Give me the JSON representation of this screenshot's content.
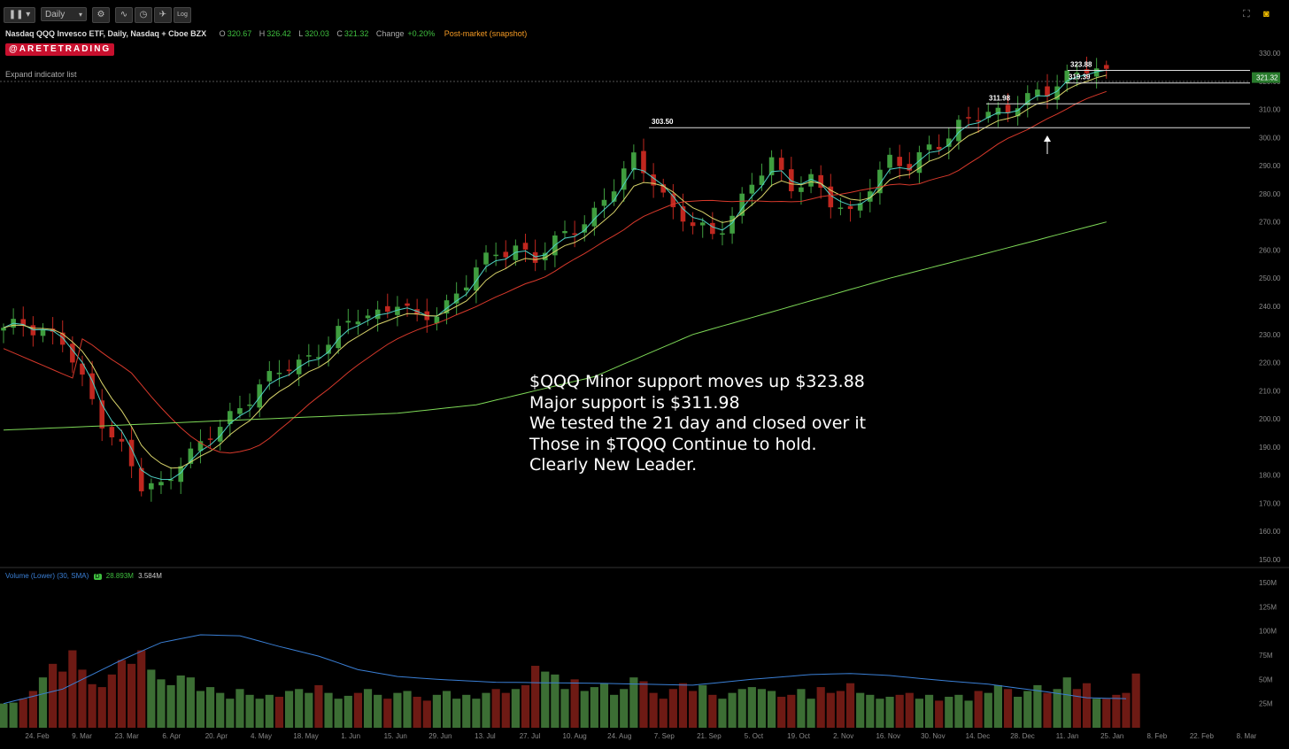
{
  "toolbar": {
    "interval_label": "Daily",
    "log_label": "Log"
  },
  "header": {
    "instrument": "Nasdaq QQQ Invesco ETF, Daily, Nasdaq + Cboe BZX",
    "open_label": "O",
    "open": "320.67",
    "high_label": "H",
    "high": "326.42",
    "low_label": "L",
    "low": "320.03",
    "close_label": "C",
    "close": "321.32",
    "change_label": "Change",
    "change": "+0.20%",
    "post_market": "Post-market (snapshot)"
  },
  "brand": "@ARETETRADING",
  "expand_indicator": "Expand indicator list",
  "volume_legend": {
    "label": "Volume (Lower) (30, SMA)",
    "badge": "D",
    "volume": "28.893M",
    "sma": "3.584M"
  },
  "annotation": [
    "$QQQ Minor support moves up $323.88",
    "Major support is $311.98",
    "We tested the 21 day and closed over it",
    "Those in $TQQQ Continue to hold.",
    "Clearly New Leader."
  ],
  "colors": {
    "up": "#3f9e3f",
    "down": "#c0271f",
    "ema_fast": "#4fd1c5",
    "ema_mid": "#d8d36a",
    "ma_50": "#d8392b",
    "ma_200": "#7ed957",
    "vol_up": "#3c6e34",
    "vol_down": "#6e1a14",
    "vol_sma": "#3a7fd5",
    "current_price_bg": "#2a7d2e"
  },
  "chart_data": {
    "type": "candlestick",
    "price_axis": {
      "ylim": [
        150,
        330
      ],
      "ticks": [
        "330.00",
        "320.00",
        "310.00",
        "300.00",
        "290.00",
        "280.00",
        "270.00",
        "260.00",
        "250.00",
        "240.00",
        "230.00",
        "220.00",
        "210.00",
        "200.00",
        "190.00",
        "180.00",
        "170.00",
        "160.00",
        "150.00"
      ]
    },
    "volume_axis": {
      "ylim": [
        0,
        150
      ],
      "ticks": [
        "150M",
        "125M",
        "100M",
        "75M",
        "50M",
        "25M"
      ]
    },
    "x_tick_labels": [
      "24. Feb",
      "9. Mar",
      "23. Mar",
      "6. Apr",
      "20. Apr",
      "4. May",
      "18. May",
      "1. Jun",
      "15. Jun",
      "29. Jun",
      "13. Jul",
      "27. Jul",
      "10. Aug",
      "24. Aug",
      "7. Sep",
      "21. Sep",
      "5. Oct",
      "19. Oct",
      "2. Nov",
      "16. Nov",
      "30. Nov",
      "14. Dec",
      "28. Dec",
      "11. Jan",
      "25. Jan",
      "8. Feb",
      "22. Feb",
      "8. Mar"
    ],
    "close_path": [
      [
        0,
        231
      ],
      [
        2,
        234
      ],
      [
        4,
        232
      ],
      [
        6,
        227
      ],
      [
        8,
        213
      ],
      [
        10,
        200
      ],
      [
        12,
        190
      ],
      [
        14,
        175
      ],
      [
        16,
        176
      ],
      [
        18,
        186
      ],
      [
        20,
        190
      ],
      [
        22,
        197
      ],
      [
        24,
        205
      ],
      [
        26,
        212
      ],
      [
        28,
        216
      ],
      [
        30,
        220
      ],
      [
        32,
        225
      ],
      [
        34,
        230
      ],
      [
        36,
        236
      ],
      [
        38,
        238
      ],
      [
        40,
        242
      ],
      [
        42,
        234
      ],
      [
        44,
        238
      ],
      [
        46,
        245
      ],
      [
        48,
        253
      ],
      [
        50,
        258
      ],
      [
        52,
        262
      ],
      [
        54,
        257
      ],
      [
        56,
        262
      ],
      [
        58,
        268
      ],
      [
        60,
        274
      ],
      [
        62,
        282
      ],
      [
        64,
        292
      ],
      [
        66,
        286
      ],
      [
        68,
        274
      ],
      [
        70,
        268
      ],
      [
        72,
        266
      ],
      [
        74,
        273
      ],
      [
        76,
        283
      ],
      [
        78,
        291
      ],
      [
        80,
        284
      ],
      [
        82,
        285
      ],
      [
        84,
        276
      ],
      [
        86,
        273
      ],
      [
        88,
        284
      ],
      [
        90,
        291
      ],
      [
        92,
        289
      ],
      [
        94,
        298
      ],
      [
        96,
        300
      ],
      [
        98,
        306
      ],
      [
        100,
        309
      ],
      [
        102,
        311
      ],
      [
        104,
        313
      ],
      [
        106,
        316
      ],
      [
        108,
        323
      ],
      [
        110,
        325
      ],
      [
        112,
        321
      ]
    ],
    "ma_200_path": [
      [
        0,
        196
      ],
      [
        20,
        199
      ],
      [
        40,
        202
      ],
      [
        48,
        205
      ],
      [
        60,
        215
      ],
      [
        70,
        230
      ],
      [
        80,
        240
      ],
      [
        90,
        250
      ],
      [
        100,
        259
      ],
      [
        112,
        270
      ]
    ],
    "levels": [
      {
        "label": "323.88",
        "value": 323.88
      },
      {
        "label": "319.39",
        "value": 319.39
      },
      {
        "label": "311.98",
        "value": 311.98
      },
      {
        "label": "303.50",
        "value": 303.5
      }
    ],
    "current_price": "321.32",
    "volume_bars": [
      25,
      26,
      30,
      38,
      52,
      66,
      58,
      80,
      60,
      45,
      42,
      55,
      70,
      66,
      80,
      60,
      50,
      44,
      54,
      52,
      38,
      42,
      36,
      30,
      40,
      34,
      30,
      34,
      32,
      38,
      40,
      36,
      44,
      36,
      30,
      33,
      36,
      40,
      34,
      30,
      36,
      38,
      32,
      28,
      34,
      38,
      30,
      34,
      30,
      36,
      40,
      36,
      40,
      44,
      64,
      58,
      55,
      40,
      50,
      38,
      42,
      46,
      34,
      40,
      52,
      48,
      36,
      30,
      40,
      46,
      38,
      44,
      34,
      30,
      36,
      40,
      42,
      40,
      38,
      32,
      34,
      40,
      30,
      42,
      36,
      38,
      46,
      36,
      34,
      30,
      32,
      34,
      36,
      30,
      34,
      28,
      32,
      34,
      28,
      38,
      36,
      44,
      40,
      32,
      38,
      44,
      36,
      40,
      52,
      40,
      46,
      30,
      30,
      34,
      36,
      56
    ],
    "volume_sma_path": [
      [
        0,
        25
      ],
      [
        6,
        40
      ],
      [
        12,
        70
      ],
      [
        16,
        88
      ],
      [
        20,
        96
      ],
      [
        24,
        95
      ],
      [
        28,
        84
      ],
      [
        32,
        74
      ],
      [
        36,
        60
      ],
      [
        40,
        53
      ],
      [
        44,
        50
      ],
      [
        50,
        47
      ],
      [
        60,
        46
      ],
      [
        70,
        44
      ],
      [
        76,
        50
      ],
      [
        82,
        55
      ],
      [
        86,
        56
      ],
      [
        90,
        54
      ],
      [
        94,
        50
      ],
      [
        100,
        45
      ],
      [
        106,
        37
      ],
      [
        110,
        31
      ],
      [
        114,
        30
      ]
    ]
  }
}
